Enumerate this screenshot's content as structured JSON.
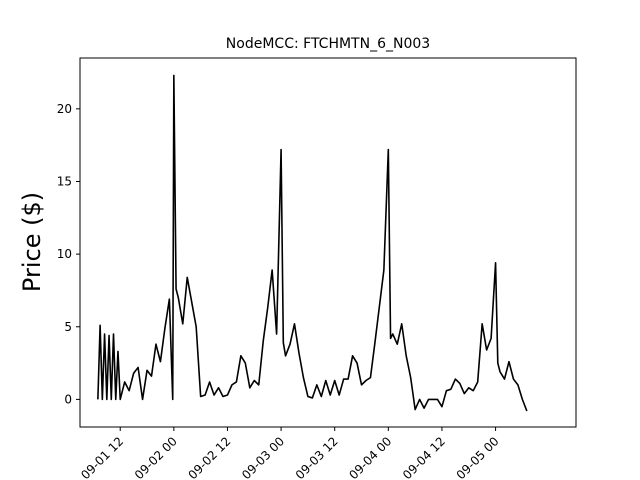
{
  "chart_data": {
    "type": "line",
    "title": "NodeMCC: FTCHMTN_6_N003",
    "xlabel": "",
    "ylabel": "Price ($)",
    "xlim": [
      "2022-09-01 03:00",
      "2022-09-05 18:00"
    ],
    "ylim": [
      -1.9,
      23.5
    ],
    "grid": false,
    "legend": "none",
    "line_color": "#000000",
    "x_ticks": [
      {
        "label": "09-01 12",
        "value": "2022-09-01 12:00"
      },
      {
        "label": "09-02 00",
        "value": "2022-09-02 00:00"
      },
      {
        "label": "09-02 12",
        "value": "2022-09-02 12:00"
      },
      {
        "label": "09-03 00",
        "value": "2022-09-03 00:00"
      },
      {
        "label": "09-03 12",
        "value": "2022-09-03 12:00"
      },
      {
        "label": "09-04 00",
        "value": "2022-09-04 00:00"
      },
      {
        "label": "09-04 12",
        "value": "2022-09-04 12:00"
      },
      {
        "label": "09-05 00",
        "value": "2022-09-05 00:00"
      }
    ],
    "y_ticks": [
      {
        "label": "0",
        "value": 0
      },
      {
        "label": "5",
        "value": 5
      },
      {
        "label": "10",
        "value": 10
      },
      {
        "label": "15",
        "value": 15
      },
      {
        "label": "20",
        "value": 20
      }
    ],
    "series": [
      {
        "x": [
          "2022-09-01 07:00",
          "2022-09-01 07:30",
          "2022-09-01 08:00",
          "2022-09-01 08:30",
          "2022-09-01 09:00",
          "2022-09-01 09:30",
          "2022-09-01 10:00",
          "2022-09-01 10:30",
          "2022-09-01 11:00",
          "2022-09-01 11:30",
          "2022-09-01 12:00",
          "2022-09-01 13:00",
          "2022-09-01 14:00",
          "2022-09-01 15:00",
          "2022-09-01 16:00",
          "2022-09-01 17:00",
          "2022-09-01 18:00",
          "2022-09-01 19:00",
          "2022-09-01 20:00",
          "2022-09-01 21:00",
          "2022-09-01 22:00",
          "2022-09-01 23:00",
          "2022-09-01 23:45",
          "2022-09-02 00:00",
          "2022-09-02 00:30",
          "2022-09-02 01:00",
          "2022-09-02 02:00",
          "2022-09-02 03:00",
          "2022-09-02 04:00",
          "2022-09-02 05:00",
          "2022-09-02 06:00",
          "2022-09-02 07:00",
          "2022-09-02 08:00",
          "2022-09-02 09:00",
          "2022-09-02 10:00",
          "2022-09-02 11:00",
          "2022-09-02 12:00",
          "2022-09-02 13:00",
          "2022-09-02 14:00",
          "2022-09-02 15:00",
          "2022-09-02 16:00",
          "2022-09-02 17:00",
          "2022-09-02 18:00",
          "2022-09-02 19:00",
          "2022-09-02 20:00",
          "2022-09-02 21:00",
          "2022-09-02 22:00",
          "2022-09-02 23:00",
          "2022-09-03 00:00",
          "2022-09-03 00:30",
          "2022-09-03 01:00",
          "2022-09-03 02:00",
          "2022-09-03 03:00",
          "2022-09-03 04:00",
          "2022-09-03 05:00",
          "2022-09-03 06:00",
          "2022-09-03 07:00",
          "2022-09-03 08:00",
          "2022-09-03 09:00",
          "2022-09-03 10:00",
          "2022-09-03 11:00",
          "2022-09-03 12:00",
          "2022-09-03 13:00",
          "2022-09-03 14:00",
          "2022-09-03 15:00",
          "2022-09-03 16:00",
          "2022-09-03 17:00",
          "2022-09-03 18:00",
          "2022-09-03 19:00",
          "2022-09-03 20:00",
          "2022-09-03 21:00",
          "2022-09-03 22:00",
          "2022-09-03 23:00",
          "2022-09-04 00:00",
          "2022-09-04 00:30",
          "2022-09-04 01:00",
          "2022-09-04 02:00",
          "2022-09-04 03:00",
          "2022-09-04 04:00",
          "2022-09-04 05:00",
          "2022-09-04 06:00",
          "2022-09-04 07:00",
          "2022-09-04 08:00",
          "2022-09-04 09:00",
          "2022-09-04 10:00",
          "2022-09-04 11:00",
          "2022-09-04 12:00",
          "2022-09-04 13:00",
          "2022-09-04 14:00",
          "2022-09-04 15:00",
          "2022-09-04 16:00",
          "2022-09-04 17:00",
          "2022-09-04 18:00",
          "2022-09-04 19:00",
          "2022-09-04 20:00",
          "2022-09-04 21:00",
          "2022-09-04 22:00",
          "2022-09-04 23:00",
          "2022-09-05 00:00",
          "2022-09-05 00:30",
          "2022-09-05 01:00",
          "2022-09-05 02:00",
          "2022-09-05 03:00",
          "2022-09-05 04:00",
          "2022-09-05 05:00",
          "2022-09-05 06:00",
          "2022-09-05 07:00"
        ],
        "y": [
          0,
          5.1,
          0,
          4.5,
          0,
          4.4,
          0,
          4.5,
          0,
          3.3,
          0,
          1.2,
          0.6,
          1.8,
          2.2,
          0,
          2.0,
          1.6,
          3.8,
          2.6,
          4.9,
          6.9,
          0,
          22.3,
          7.6,
          7.0,
          5.2,
          8.4,
          6.7,
          5.0,
          0.2,
          0.3,
          1.2,
          0.3,
          0.8,
          0.2,
          0.3,
          1.0,
          1.2,
          3.0,
          2.5,
          0.8,
          1.3,
          1.0,
          4.0,
          6.3,
          8.9,
          4.5,
          17.2,
          3.9,
          3.0,
          3.8,
          5.2,
          3.2,
          1.5,
          0.2,
          0.1,
          1.0,
          0.2,
          1.3,
          0.3,
          1.3,
          0.3,
          1.4,
          1.4,
          3.0,
          2.5,
          1.0,
          1.3,
          1.5,
          3.9,
          6.4,
          8.9,
          17.2,
          4.2,
          4.5,
          3.8,
          5.2,
          3.0,
          1.5,
          -0.7,
          0,
          -0.6,
          0,
          0,
          0,
          -0.5,
          0.6,
          0.7,
          1.4,
          1.1,
          0.4,
          0.8,
          0.6,
          1.2,
          5.2,
          3.4,
          4.2,
          9.4,
          2.5,
          1.9,
          1.4,
          2.6,
          1.4,
          1.0,
          0,
          -0.8
        ]
      }
    ]
  }
}
